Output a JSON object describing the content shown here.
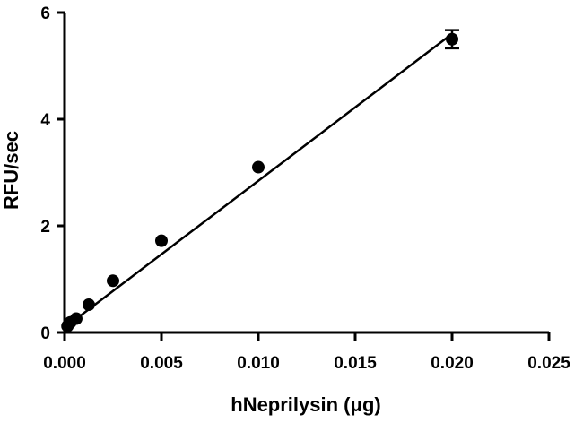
{
  "chart_data": {
    "type": "scatter",
    "xlabel": "hNeprilysin (μg)",
    "ylabel": "RFU/sec",
    "xlim": [
      0,
      0.025
    ],
    "ylim": [
      0,
      6
    ],
    "x_ticks": [
      0,
      0.005,
      0.01,
      0.015,
      0.02,
      0.025
    ],
    "x_tick_labels": [
      "0.000",
      "0.005",
      "0.010",
      "0.015",
      "0.020",
      "0.025"
    ],
    "y_ticks": [
      0,
      2,
      4,
      6
    ],
    "y_tick_labels": [
      "0",
      "2",
      "4",
      "6"
    ],
    "grid": false,
    "series": [
      {
        "points": [
          {
            "x": 0.00015,
            "y": 0.12
          },
          {
            "x": 0.0003,
            "y": 0.19
          },
          {
            "x": 0.0006,
            "y": 0.26
          },
          {
            "x": 0.00125,
            "y": 0.52
          },
          {
            "x": 0.0025,
            "y": 0.97
          },
          {
            "x": 0.005,
            "y": 1.72
          },
          {
            "x": 0.01,
            "y": 3.1
          },
          {
            "x": 0.02,
            "y": 5.5
          }
        ],
        "error_bars": [
          {
            "x": 0.02,
            "low": 5.33,
            "high": 5.67
          }
        ]
      }
    ],
    "fit_line": {
      "type": "linear",
      "x0": 0,
      "y0": 0.09,
      "x1": 0.02,
      "y1": 5.6
    }
  }
}
